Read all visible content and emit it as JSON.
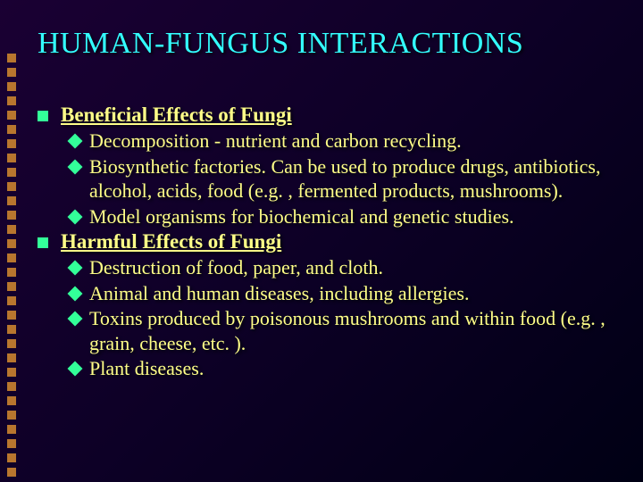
{
  "title": "HUMAN-FUNGUS INTERACTIONS",
  "colors": {
    "title_color": "#33ffff",
    "text_color": "#ffff88",
    "bullet_color": "#33ff99",
    "decor_color": "#b8762e",
    "bg_gradient_start": "#1a0033",
    "bg_gradient_mid": "#0d0026",
    "bg_gradient_end": "#000014"
  },
  "typography": {
    "title_fontsize": 34,
    "section_fontsize": 23,
    "body_fontsize": 22,
    "font_family": "Times New Roman"
  },
  "decor_square_count": 30,
  "sections": [
    {
      "heading": "Beneficial Effects of Fungi",
      "items": [
        "Decomposition - nutrient and carbon recycling.",
        "Biosynthetic factories. Can be used to produce drugs, antibiotics, alcohol, acids, food (e.g. , fermented products, mushrooms).",
        "Model organisms for biochemical and genetic studies."
      ]
    },
    {
      "heading": "Harmful Effects of Fungi",
      "items": [
        "Destruction of food, paper, and cloth.",
        "Animal and human diseases, including allergies.",
        "Toxins produced by poisonous mushrooms and within food (e.g. , grain, cheese, etc. ).",
        "Plant diseases."
      ]
    }
  ]
}
